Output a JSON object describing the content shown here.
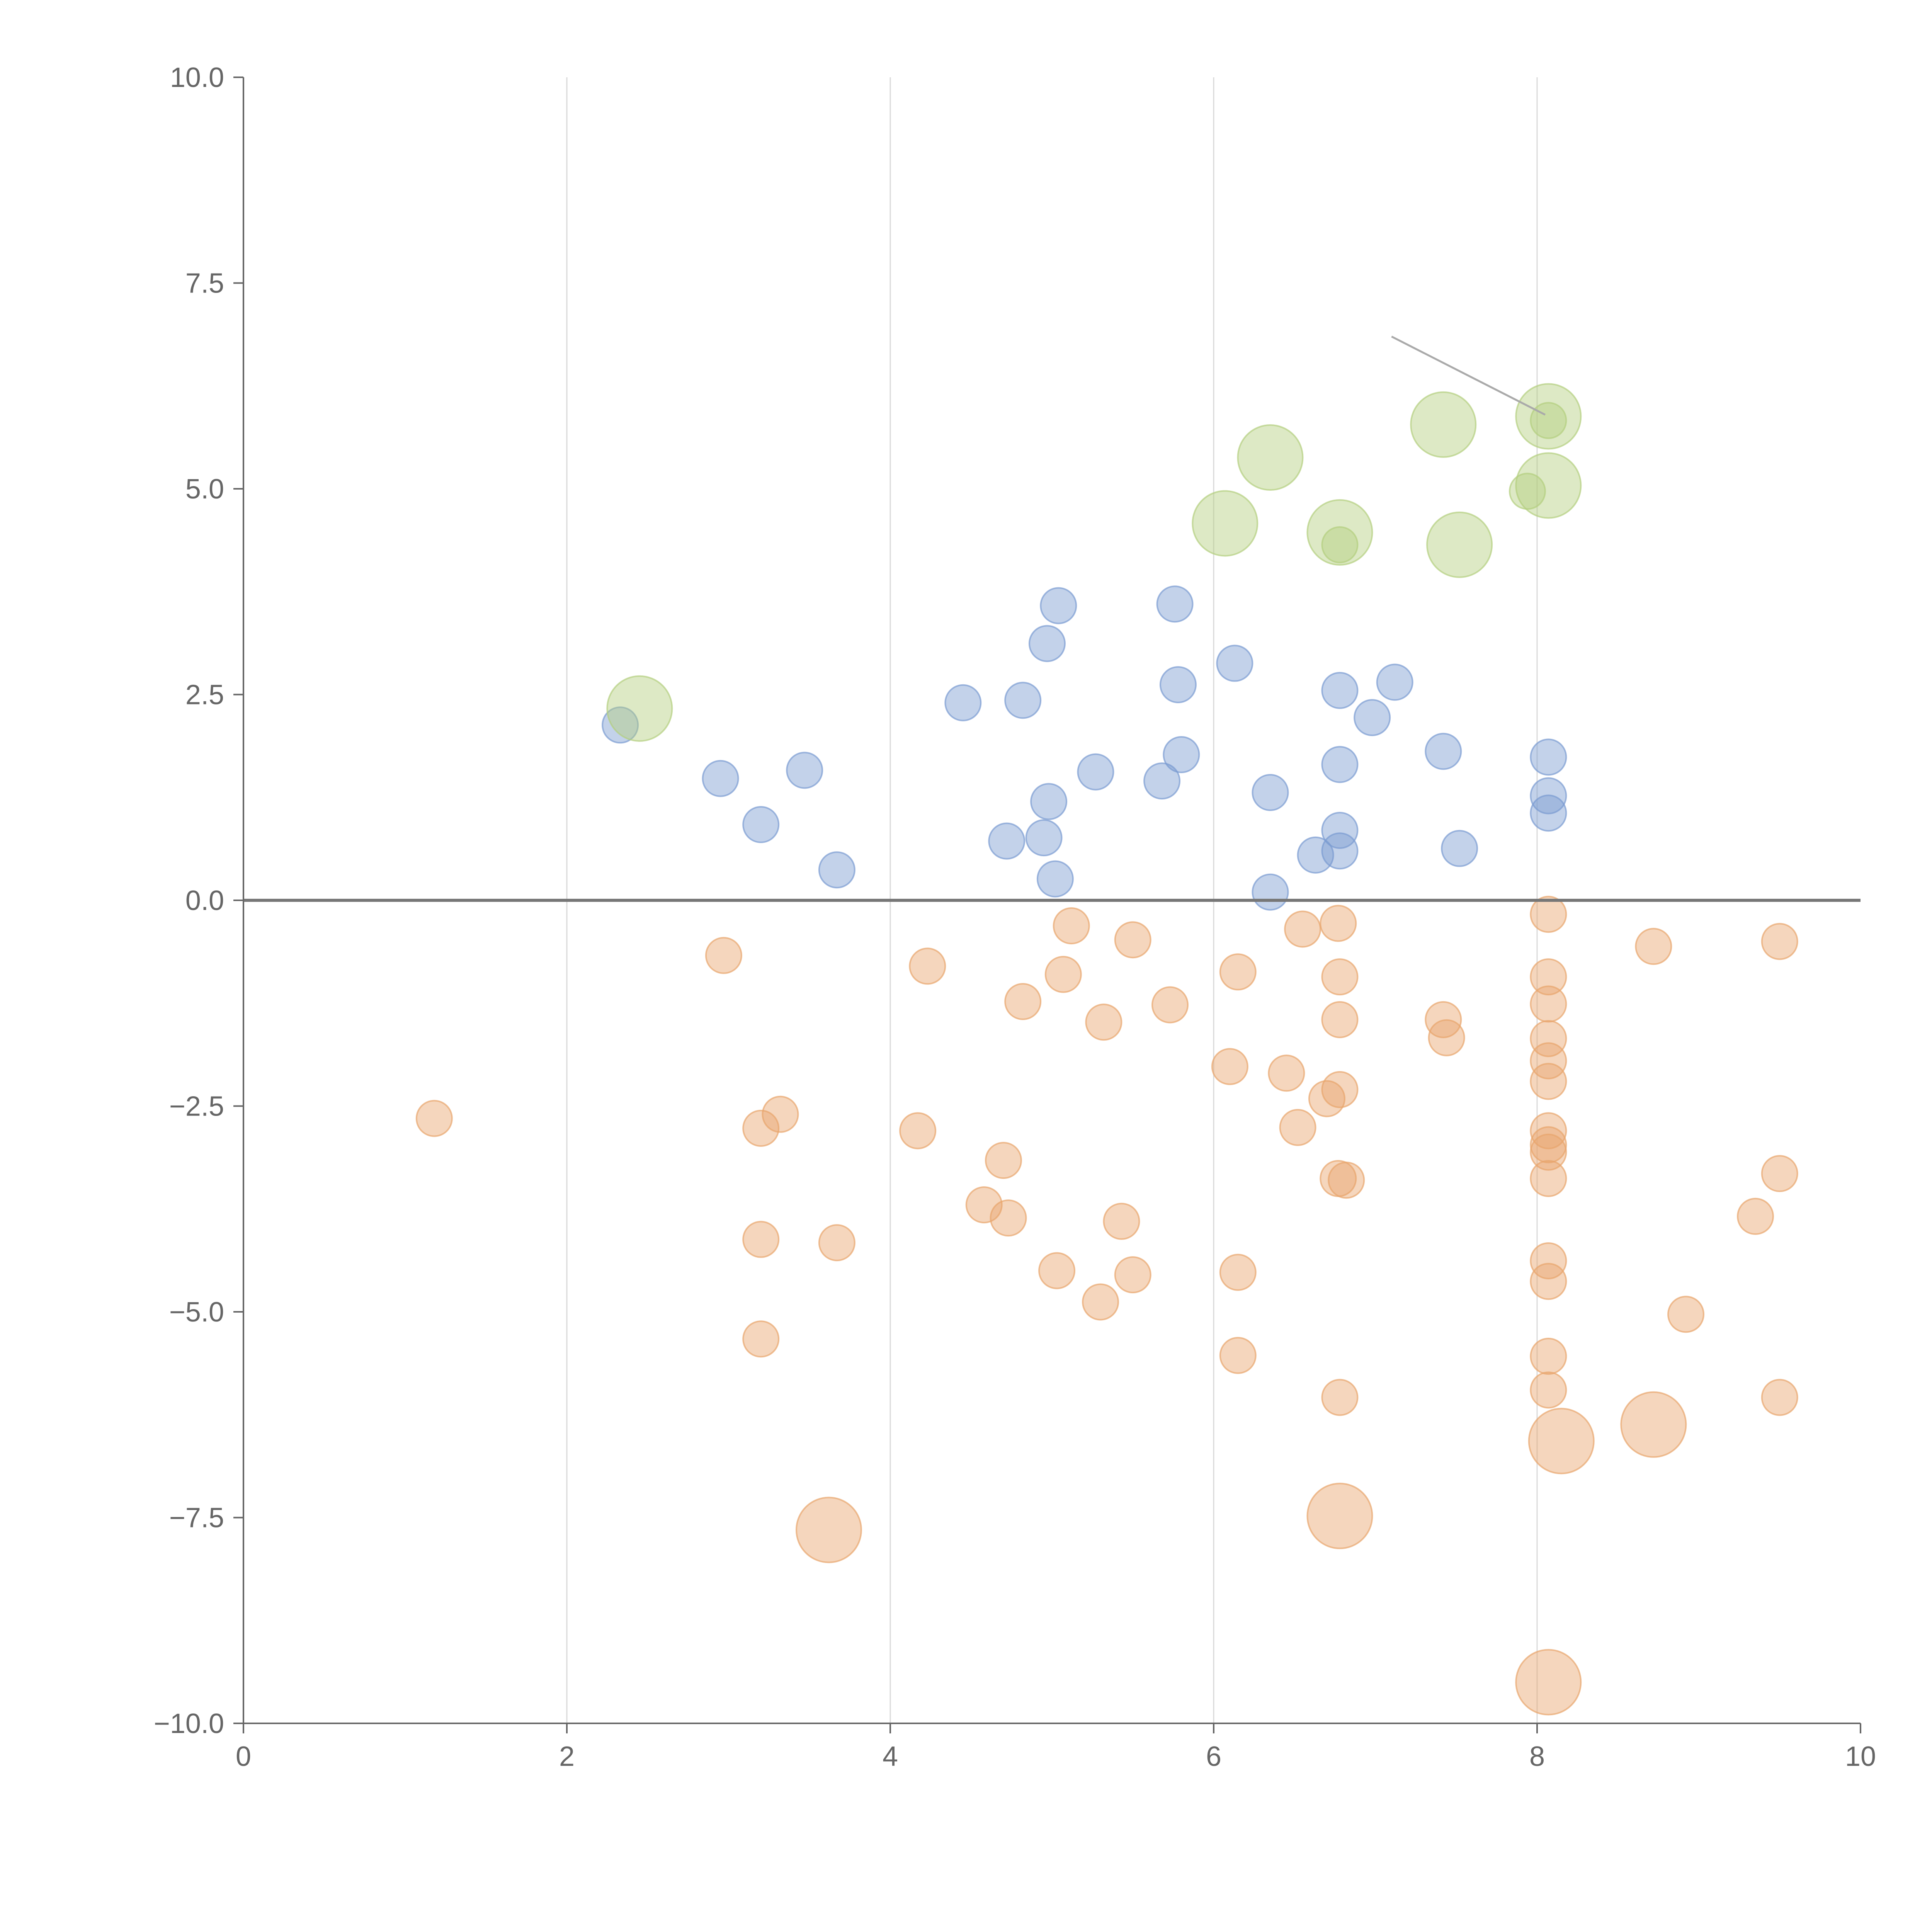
{
  "chart_data": {
    "type": "scatter",
    "title": "",
    "xlabel": "",
    "ylabel": "",
    "xlim": [
      0,
      10
    ],
    "ylim": [
      -10,
      10
    ],
    "grid": "vertical",
    "x_ticks": [
      "0",
      "2",
      "4",
      "6",
      "8",
      "10"
    ],
    "x_tick_values": [
      0,
      2,
      4,
      6,
      8,
      10
    ],
    "y_ticks": [
      "10.0",
      "7.5",
      "5.0",
      "2.5",
      "0.0",
      "−2.5",
      "−5.0",
      "−7.5",
      "−10.0"
    ],
    "y_tick_values": [
      10,
      7.5,
      5,
      2.5,
      0,
      -2.5,
      -5,
      -7.5,
      -10
    ],
    "series": [
      {
        "name": "positive",
        "color": "#7b9bd1",
        "points": [
          {
            "x": 2.33,
            "y": 2.13,
            "size": 1
          },
          {
            "x": 2.95,
            "y": 1.48,
            "size": 1
          },
          {
            "x": 3.2,
            "y": 0.92,
            "size": 1
          },
          {
            "x": 3.47,
            "y": 1.58,
            "size": 1
          },
          {
            "x": 3.67,
            "y": 0.37,
            "size": 1
          },
          {
            "x": 4.45,
            "y": 2.4,
            "size": 1
          },
          {
            "x": 4.72,
            "y": 0.72,
            "size": 1
          },
          {
            "x": 4.82,
            "y": 2.43,
            "size": 1
          },
          {
            "x": 4.95,
            "y": 0.76,
            "size": 1
          },
          {
            "x": 4.97,
            "y": 3.12,
            "size": 1
          },
          {
            "x": 4.98,
            "y": 1.2,
            "size": 1
          },
          {
            "x": 5.02,
            "y": 0.26,
            "size": 1
          },
          {
            "x": 5.04,
            "y": 3.58,
            "size": 1
          },
          {
            "x": 5.27,
            "y": 1.56,
            "size": 1
          },
          {
            "x": 5.68,
            "y": 1.45,
            "size": 1
          },
          {
            "x": 5.76,
            "y": 3.6,
            "size": 1
          },
          {
            "x": 5.78,
            "y": 2.62,
            "size": 1
          },
          {
            "x": 5.8,
            "y": 1.77,
            "size": 1
          },
          {
            "x": 6.13,
            "y": 2.88,
            "size": 1
          },
          {
            "x": 6.35,
            "y": 1.31,
            "size": 1
          },
          {
            "x": 6.35,
            "y": 0.1,
            "size": 1
          },
          {
            "x": 6.63,
            "y": 0.55,
            "size": 1
          },
          {
            "x": 6.78,
            "y": 2.55,
            "size": 1
          },
          {
            "x": 6.78,
            "y": 1.65,
            "size": 1
          },
          {
            "x": 6.78,
            "y": 0.85,
            "size": 1
          },
          {
            "x": 6.78,
            "y": 0.6,
            "size": 1
          },
          {
            "x": 6.98,
            "y": 2.22,
            "size": 1
          },
          {
            "x": 7.12,
            "y": 2.65,
            "size": 1
          },
          {
            "x": 7.42,
            "y": 1.81,
            "size": 1
          },
          {
            "x": 7.52,
            "y": 0.63,
            "size": 1
          },
          {
            "x": 8.07,
            "y": 1.74,
            "size": 1
          },
          {
            "x": 8.07,
            "y": 1.27,
            "size": 1
          },
          {
            "x": 8.07,
            "y": 1.06,
            "size": 1
          }
        ]
      },
      {
        "name": "negative",
        "color": "#e8a56c",
        "points": [
          {
            "x": 1.18,
            "y": -2.65,
            "size": 1
          },
          {
            "x": 2.97,
            "y": -0.67,
            "size": 1
          },
          {
            "x": 3.2,
            "y": -2.77,
            "size": 1
          },
          {
            "x": 3.2,
            "y": -4.12,
            "size": 1
          },
          {
            "x": 3.2,
            "y": -5.33,
            "size": 1
          },
          {
            "x": 3.32,
            "y": -2.6,
            "size": 1
          },
          {
            "x": 3.62,
            "y": -7.65,
            "size": 3
          },
          {
            "x": 3.67,
            "y": -4.16,
            "size": 1
          },
          {
            "x": 4.17,
            "y": -2.8,
            "size": 1
          },
          {
            "x": 4.23,
            "y": -0.8,
            "size": 1
          },
          {
            "x": 4.58,
            "y": -3.7,
            "size": 1
          },
          {
            "x": 4.7,
            "y": -3.16,
            "size": 1
          },
          {
            "x": 4.73,
            "y": -3.86,
            "size": 1
          },
          {
            "x": 4.82,
            "y": -1.23,
            "size": 1
          },
          {
            "x": 5.03,
            "y": -4.5,
            "size": 1
          },
          {
            "x": 5.07,
            "y": -0.9,
            "size": 1
          },
          {
            "x": 5.12,
            "y": -0.31,
            "size": 1
          },
          {
            "x": 5.3,
            "y": -4.88,
            "size": 1
          },
          {
            "x": 5.32,
            "y": -1.48,
            "size": 1
          },
          {
            "x": 5.43,
            "y": -3.9,
            "size": 1
          },
          {
            "x": 5.5,
            "y": -0.48,
            "size": 1
          },
          {
            "x": 5.5,
            "y": -4.55,
            "size": 1
          },
          {
            "x": 5.73,
            "y": -1.27,
            "size": 1
          },
          {
            "x": 6.1,
            "y": -2.02,
            "size": 1
          },
          {
            "x": 6.15,
            "y": -0.87,
            "size": 1
          },
          {
            "x": 6.15,
            "y": -4.52,
            "size": 1
          },
          {
            "x": 6.15,
            "y": -5.53,
            "size": 1
          },
          {
            "x": 6.45,
            "y": -2.1,
            "size": 1
          },
          {
            "x": 6.52,
            "y": -2.76,
            "size": 1
          },
          {
            "x": 6.55,
            "y": -0.35,
            "size": 1
          },
          {
            "x": 6.7,
            "y": -2.41,
            "size": 1
          },
          {
            "x": 6.77,
            "y": -0.28,
            "size": 1
          },
          {
            "x": 6.78,
            "y": -0.93,
            "size": 1
          },
          {
            "x": 6.78,
            "y": -1.45,
            "size": 1
          },
          {
            "x": 6.78,
            "y": -2.3,
            "size": 1
          },
          {
            "x": 6.77,
            "y": -3.38,
            "size": 1
          },
          {
            "x": 6.82,
            "y": -3.4,
            "size": 1
          },
          {
            "x": 6.78,
            "y": -6.04,
            "size": 1
          },
          {
            "x": 6.78,
            "y": -7.48,
            "size": 3
          },
          {
            "x": 7.42,
            "y": -1.45,
            "size": 1
          },
          {
            "x": 7.44,
            "y": -1.67,
            "size": 1
          },
          {
            "x": 8.07,
            "y": -0.17,
            "size": 1
          },
          {
            "x": 8.07,
            "y": -0.93,
            "size": 1
          },
          {
            "x": 8.07,
            "y": -1.26,
            "size": 1
          },
          {
            "x": 8.07,
            "y": -1.68,
            "size": 1
          },
          {
            "x": 8.07,
            "y": -1.95,
            "size": 1
          },
          {
            "x": 8.07,
            "y": -2.2,
            "size": 1
          },
          {
            "x": 8.07,
            "y": -2.8,
            "size": 1
          },
          {
            "x": 8.07,
            "y": -2.97,
            "size": 1
          },
          {
            "x": 8.07,
            "y": -3.06,
            "size": 1
          },
          {
            "x": 8.07,
            "y": -3.38,
            "size": 1
          },
          {
            "x": 8.07,
            "y": -4.38,
            "size": 1
          },
          {
            "x": 8.07,
            "y": -4.63,
            "size": 1
          },
          {
            "x": 8.07,
            "y": -5.54,
            "size": 1
          },
          {
            "x": 8.07,
            "y": -5.95,
            "size": 1
          },
          {
            "x": 8.15,
            "y": -6.57,
            "size": 3
          },
          {
            "x": 8.07,
            "y": -9.5,
            "size": 3
          },
          {
            "x": 8.72,
            "y": -0.56,
            "size": 1
          },
          {
            "x": 8.72,
            "y": -6.37,
            "size": 3
          },
          {
            "x": 8.92,
            "y": -5.03,
            "size": 1
          },
          {
            "x": 9.35,
            "y": -3.84,
            "size": 1
          },
          {
            "x": 9.5,
            "y": -0.5,
            "size": 1
          },
          {
            "x": 9.5,
            "y": -3.32,
            "size": 1
          },
          {
            "x": 9.5,
            "y": -6.04,
            "size": 1
          }
        ]
      },
      {
        "name": "highlight",
        "color": "#b4cf7f",
        "points": [
          {
            "x": 2.45,
            "y": 2.33,
            "size": 3
          },
          {
            "x": 6.07,
            "y": 4.58,
            "size": 3
          },
          {
            "x": 6.35,
            "y": 5.38,
            "size": 3
          },
          {
            "x": 6.78,
            "y": 4.47,
            "size": 3
          },
          {
            "x": 6.78,
            "y": 4.32,
            "size": 1
          },
          {
            "x": 7.42,
            "y": 5.78,
            "size": 3
          },
          {
            "x": 7.52,
            "y": 4.32,
            "size": 3
          },
          {
            "x": 7.94,
            "y": 4.97,
            "size": 1
          },
          {
            "x": 8.07,
            "y": 5.88,
            "size": 3
          },
          {
            "x": 8.07,
            "y": 5.83,
            "size": 1
          },
          {
            "x": 8.07,
            "y": 5.04,
            "size": 3
          }
        ]
      }
    ],
    "annotations": [
      {
        "from": [
          7.1,
          6.85
        ],
        "to": [
          8.05,
          5.9
        ]
      }
    ]
  }
}
